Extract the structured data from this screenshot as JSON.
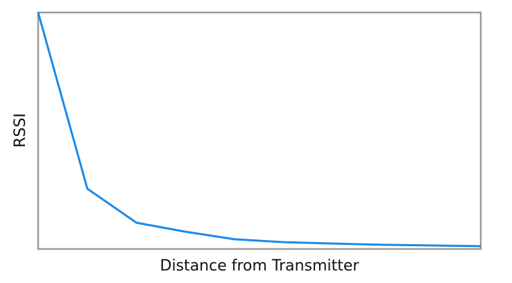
{
  "chart_data": {
    "type": "line",
    "x_label": "Distance from Transmitter",
    "y_label": "RSSI",
    "x": [
      0,
      1,
      2,
      3,
      4,
      5,
      6,
      7,
      8,
      9
    ],
    "series": [
      {
        "color": "#1a8ae6",
        "values": [
          100,
          25.5,
          11.1,
          7.3,
          4.1,
          2.9,
          2.3,
          1.8,
          1.5,
          1.2
        ]
      }
    ],
    "xlim": [
      0,
      9
    ],
    "ylim": [
      0,
      100
    ]
  }
}
